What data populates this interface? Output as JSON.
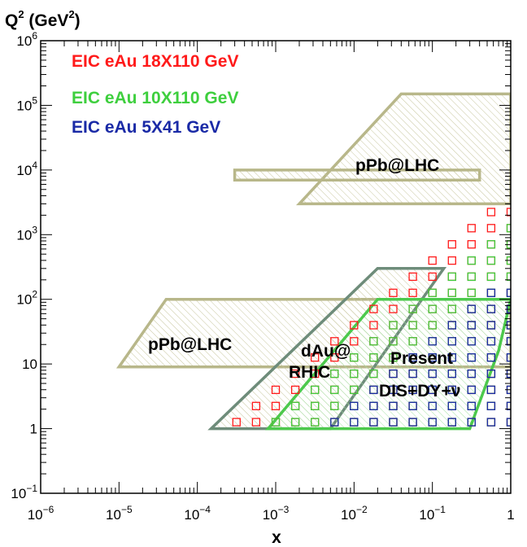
{
  "chart_data": {
    "type": "scatter",
    "ylabel_html": [
      "Q",
      "2",
      " (GeV",
      "2",
      ")"
    ],
    "xlabel": "x",
    "xscale": "log",
    "yscale": "log",
    "xlim": [
      1e-06,
      1
    ],
    "ylim": [
      0.1,
      1000000.0
    ],
    "x_ticks": [
      {
        "v": 1e-06,
        "base": "10",
        "exp": "−6"
      },
      {
        "v": 1e-05,
        "base": "10",
        "exp": "−5"
      },
      {
        "v": 0.0001,
        "base": "10",
        "exp": "−4"
      },
      {
        "v": 0.001,
        "base": "10",
        "exp": "−3"
      },
      {
        "v": 0.01,
        "base": "10",
        "exp": "−2"
      },
      {
        "v": 0.1,
        "base": "10",
        "exp": "−1"
      },
      {
        "v": 1,
        "base": "1",
        "exp": ""
      }
    ],
    "y_ticks": [
      {
        "v": 0.1,
        "base": "10",
        "exp": "−1"
      },
      {
        "v": 1,
        "base": "1",
        "exp": ""
      },
      {
        "v": 10,
        "base": "10",
        "exp": ""
      },
      {
        "v": 100,
        "base": "10",
        "exp": "2"
      },
      {
        "v": 1000,
        "base": "10",
        "exp": "3"
      },
      {
        "v": 10000,
        "base": "10",
        "exp": "4"
      },
      {
        "v": 100000,
        "base": "10",
        "exp": "5"
      },
      {
        "v": 1000000,
        "base": "10",
        "exp": "6"
      }
    ],
    "series": [
      {
        "name": "EIC eAu 18X110 GeV",
        "color": "#ff1a1a",
        "xmin_decade": -5.5,
        "slope": 1.0,
        "q2max": 3200
      },
      {
        "name": "EIC eAu 10X110 GeV",
        "color": "#3ecf3e",
        "xmin_decade": -5.3,
        "slope": 1.0,
        "q2max": 1600
      },
      {
        "name": "EIC eAu 5X41 GeV",
        "color": "#1a2aa6",
        "xmin_decade": -3.2,
        "slope": 1.0,
        "q2max": 200
      }
    ],
    "regions": [
      {
        "label": "pPb@LHC",
        "color": "#b8b78a",
        "points": [
          [
            0.002,
            3000
          ],
          [
            0.04,
            150000
          ],
          [
            1,
            150000
          ],
          [
            1,
            3000
          ]
        ]
      },
      {
        "label": "",
        "color": "#b8b78a",
        "points": [
          [
            0.0003,
            7000
          ],
          [
            0.4,
            7000
          ],
          [
            0.4,
            10000
          ],
          [
            0.0003,
            10000
          ]
        ]
      },
      {
        "label": "pPb@LHC",
        "color": "#b8b78a",
        "points": [
          [
            1e-05,
            9
          ],
          [
            4e-05,
            100
          ],
          [
            1,
            100
          ],
          [
            1,
            9
          ]
        ]
      },
      {
        "label": "dAu@ RHIC",
        "color": "#6e8c7a",
        "points": [
          [
            0.00015,
            1
          ],
          [
            0.02,
            300
          ],
          [
            0.14,
            300
          ],
          [
            0.005,
            1
          ]
        ]
      },
      {
        "label": "Present DIS+DY+ν",
        "color": "#4cc94c",
        "points": [
          [
            0.0008,
            1
          ],
          [
            0.02,
            100
          ],
          [
            1,
            100
          ],
          [
            0.7,
            16
          ],
          [
            0.3,
            1
          ]
        ]
      }
    ],
    "legend_placement": "top-left"
  },
  "legend": {
    "items": [
      {
        "text": "EIC eAu 18X110 GeV",
        "color": "#ff1a1a"
      },
      {
        "text": "EIC eAu 10X110 GeV",
        "color": "#3ecf3e"
      },
      {
        "text": "EIC eAu 5X41 GeV",
        "color": "#1a2aa6"
      }
    ]
  },
  "annotations": {
    "pPb_high": "pPb@LHC",
    "pPb_low": "pPb@LHC",
    "dau_line1": "dAu@",
    "dau_line2": "RHIC",
    "present_line1": "Present",
    "present_line2": "DIS+DY+ν"
  }
}
